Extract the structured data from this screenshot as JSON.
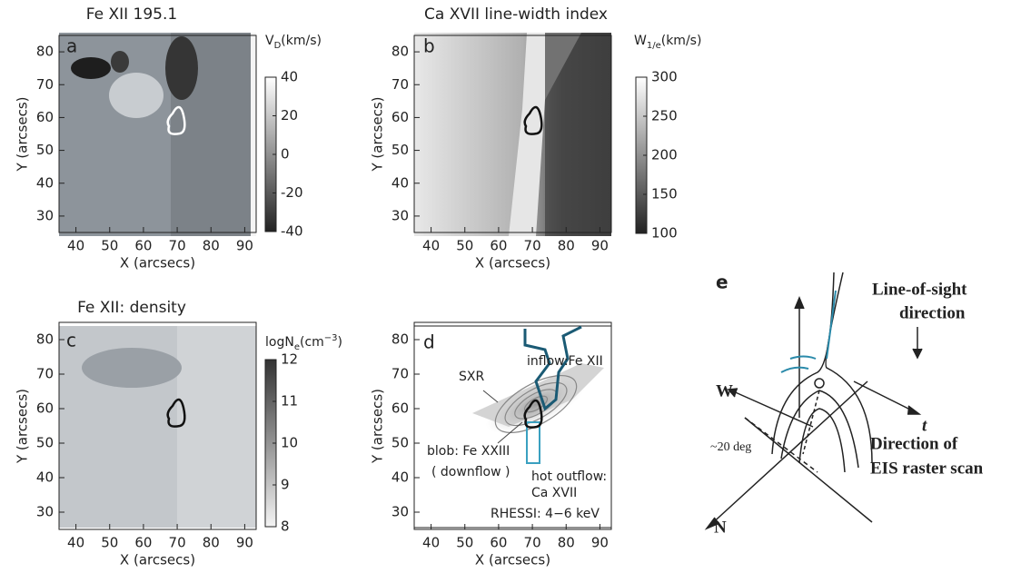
{
  "panels": [
    {
      "letter": "a",
      "title": "Fe XII 195.1",
      "x_label": "X (arcsecs)",
      "y_label": "Y (arcsecs)",
      "xlim": [
        35,
        95
      ],
      "ylim": [
        25,
        85
      ],
      "x_ticks": [
        40,
        50,
        60,
        70,
        80,
        90
      ],
      "y_ticks": [
        30,
        40,
        50,
        60,
        70,
        80
      ],
      "colorbar_label": [
        "V",
        "D",
        "(km/s)"
      ],
      "colorbar_lim": [
        -40,
        40
      ],
      "colorbar_ticks": [
        40,
        20,
        0,
        -20,
        -40
      ]
    },
    {
      "letter": "b",
      "title": "Ca XVII line-width index",
      "x_label": "X (arcsecs)",
      "y_label": "Y (arcsecs)",
      "xlim": [
        35,
        95
      ],
      "ylim": [
        25,
        85
      ],
      "x_ticks": [
        40,
        50,
        60,
        70,
        80,
        90
      ],
      "y_ticks": [
        30,
        40,
        50,
        60,
        70,
        80
      ],
      "colorbar_label": [
        "W",
        "1/e",
        "(km/s)"
      ],
      "colorbar_lim": [
        100,
        300
      ],
      "colorbar_ticks": [
        300,
        250,
        200,
        150,
        100
      ]
    },
    {
      "letter": "c",
      "title": "Fe XII: density",
      "x_label": "X (arcsecs)",
      "y_label": "Y (arcsecs)",
      "xlim": [
        35,
        95
      ],
      "ylim": [
        25,
        85
      ],
      "x_ticks": [
        40,
        50,
        60,
        70,
        80,
        90
      ],
      "y_ticks": [
        30,
        40,
        50,
        60,
        70,
        80
      ],
      "colorbar_label": [
        "logN",
        "e",
        "(cm",
        "−3",
        ")"
      ],
      "colorbar_lim": [
        8,
        12
      ],
      "colorbar_ticks": [
        12,
        11,
        10,
        9,
        8
      ]
    },
    {
      "letter": "d",
      "x_label": "X (arcsecs)",
      "y_label": "Y (arcsecs)",
      "xlim": [
        35,
        95
      ],
      "ylim": [
        25,
        85
      ],
      "x_ticks": [
        40,
        50,
        60,
        70,
        80,
        90
      ],
      "y_ticks": [
        30,
        40,
        50,
        60,
        70,
        80
      ],
      "annotations": {
        "sxr": "SXR",
        "inflow": "inflow:Fe XII",
        "blob": "blob: Fe XXIII",
        "downflow": "( downflow )",
        "hot_outflow": "hot outflow:",
        "ca": "Ca XVII",
        "rhessi": "RHESSI: 4−6 keV"
      }
    }
  ],
  "panel_e": {
    "letter": "e",
    "los_1": "Line-of-sight",
    "los_2": "direction",
    "w": "W",
    "t": "t",
    "angle": "~20 deg",
    "scan_1": "Direction of",
    "scan_2": "EIS raster scan",
    "n": "N"
  }
}
